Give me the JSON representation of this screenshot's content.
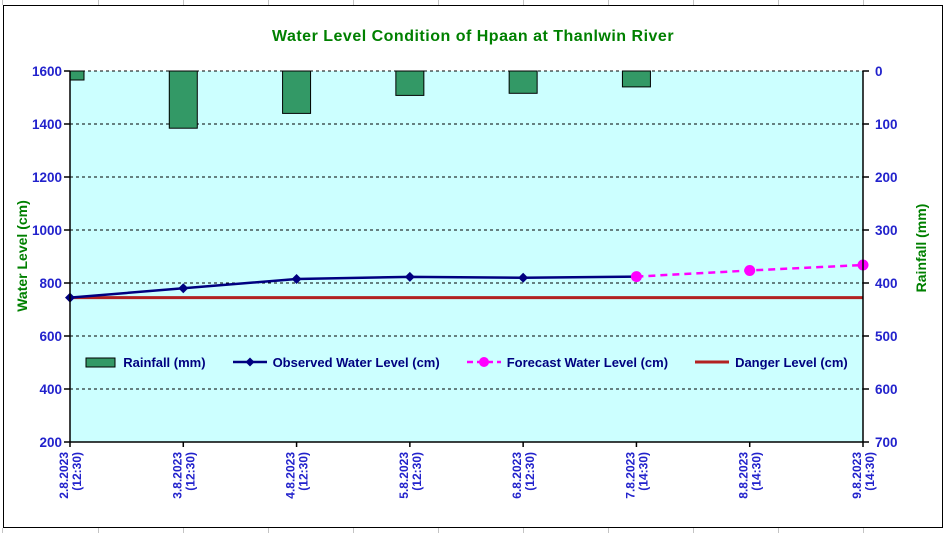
{
  "title": {
    "text": "Water Level Condition of Hpaan at Thanlwin River",
    "color": "#008000"
  },
  "chart_data": {
    "type": "combo",
    "title": "Water Level Condition of Hpaan at Thanlwin River",
    "categories": [
      {
        "date": "2.8.2023",
        "time": "(12:30)"
      },
      {
        "date": "3.8.2023",
        "time": "(12:30)"
      },
      {
        "date": "4.8.2023",
        "time": "(12:30)"
      },
      {
        "date": "5.8.2023",
        "time": "(12:30)"
      },
      {
        "date": "6.8.2023",
        "time": "(12:30)"
      },
      {
        "date": "7.8.2023",
        "time": "(14:30)"
      },
      {
        "date": "8.8.2023",
        "time": "(14:30)"
      },
      {
        "date": "9.8.2023",
        "time": "(14:30)"
      }
    ],
    "series": [
      {
        "name": "Rainfall (mm)",
        "kind": "bar",
        "axis": "right",
        "color": "#339966",
        "border_color": "#000000",
        "values": [
          17,
          108,
          80,
          46,
          42,
          30,
          null,
          null
        ]
      },
      {
        "name": "Observed Water Level (cm)",
        "kind": "line",
        "marker": "diamond",
        "axis": "left",
        "color": "#000080",
        "values": [
          745,
          780,
          815,
          823,
          820,
          824,
          null,
          null
        ]
      },
      {
        "name": "Forecast Water Level (cm)",
        "kind": "dashed-line",
        "marker": "circle",
        "axis": "left",
        "color": "#FF00FF",
        "values": [
          null,
          null,
          null,
          null,
          null,
          824,
          847,
          868
        ]
      },
      {
        "name": "Danger Level (cm)",
        "kind": "constant-line",
        "axis": "left",
        "color": "#B22222",
        "constant": 745
      }
    ],
    "left_axis": {
      "title": "Water Level (cm)",
      "min": 200,
      "max": 1600,
      "step": 200,
      "title_color": "#008000",
      "tick_color": "#2222CC"
    },
    "right_axis": {
      "title": "Rainfall (mm)",
      "min": 0,
      "max": 700,
      "step": 100,
      "direction": "inverted",
      "title_color": "#008000",
      "tick_color": "#2222CC"
    },
    "plot_bg": "#CCFFFF",
    "grid": {
      "color": "#000000",
      "style": "dashed"
    },
    "legend": {
      "position": "bottom-inside",
      "text_color": "#000080"
    }
  }
}
